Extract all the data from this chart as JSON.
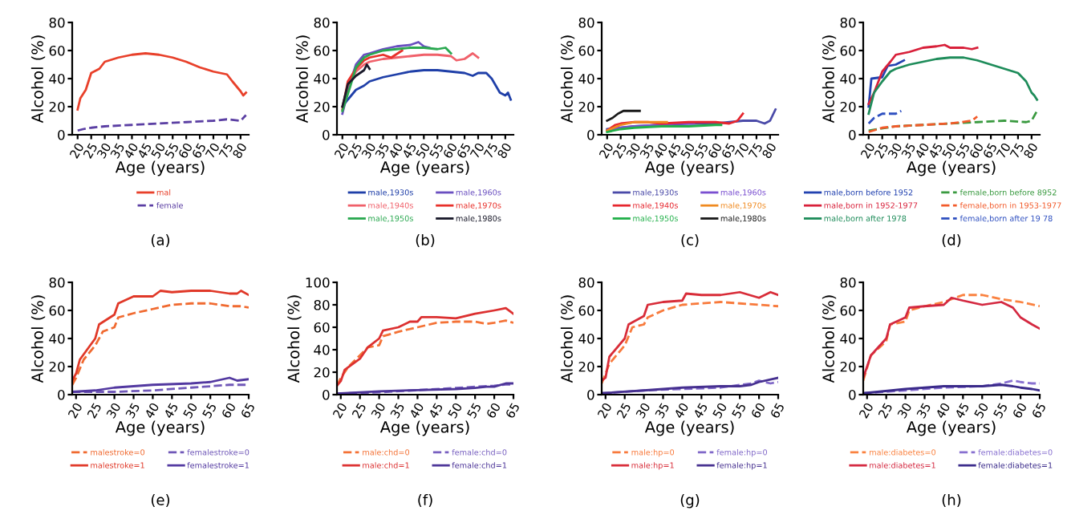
{
  "chart_data": [
    {
      "type": "line",
      "xlabel": "Age (years)",
      "ylabel": "Alcohol (%)",
      "xlim": [
        18,
        83
      ],
      "ylim": [
        0,
        80
      ],
      "xticks": [
        20,
        25,
        30,
        35,
        40,
        45,
        50,
        55,
        60,
        65,
        70,
        75,
        80
      ],
      "yticks": [
        0,
        20,
        40,
        60,
        80
      ],
      "legend": "bottom",
      "annotations": [
        "(a)"
      ],
      "series": [
        {
          "name": "mal",
          "color": "#e8402a",
          "line_style": "solid",
          "x": [
            20,
            21,
            23,
            25,
            28,
            30,
            35,
            40,
            45,
            50,
            55,
            60,
            65,
            70,
            75,
            77,
            80,
            81,
            82
          ],
          "values": [
            18,
            26,
            32,
            44,
            47,
            52,
            55,
            57,
            58,
            57,
            55,
            52,
            48,
            45,
            43,
            38,
            31,
            28,
            30
          ]
        },
        {
          "name": "female",
          "color": "#5b3fa3",
          "line_style": "dashed",
          "x": [
            20,
            22,
            25,
            30,
            40,
            50,
            60,
            70,
            75,
            80,
            82
          ],
          "values": [
            3,
            4,
            5,
            6,
            7,
            8,
            9,
            10,
            11,
            10,
            14
          ]
        }
      ]
    },
    {
      "type": "line",
      "xlabel": "Age (years)",
      "ylabel": "Alcohol (%)",
      "xlim": [
        18,
        83
      ],
      "ylim": [
        0,
        80
      ],
      "xticks": [
        20,
        25,
        30,
        35,
        40,
        45,
        50,
        55,
        60,
        65,
        70,
        75,
        80
      ],
      "yticks": [
        0,
        20,
        40,
        60,
        80
      ],
      "legend": "bottom",
      "annotations": [
        "(b)"
      ],
      "series": [
        {
          "name": "male,1930s",
          "color": "#1f3fa8",
          "line_style": "solid",
          "x": [
            20,
            22,
            25,
            28,
            30,
            35,
            40,
            45,
            50,
            55,
            60,
            65,
            68,
            70,
            73,
            75,
            78,
            80,
            81,
            82
          ],
          "values": [
            20,
            25,
            32,
            35,
            38,
            41,
            43,
            45,
            46,
            46,
            45,
            44,
            42,
            44,
            44,
            40,
            30,
            28,
            30,
            25
          ]
        },
        {
          "name": "male,1960s",
          "color": "#6a4fc0",
          "line_style": "solid",
          "x": [
            20,
            23,
            25,
            28,
            30,
            35,
            40,
            45,
            48,
            50,
            52
          ],
          "values": [
            15,
            38,
            50,
            57,
            58,
            61,
            63,
            64,
            66,
            63,
            62
          ]
        },
        {
          "name": "male,1940s",
          "color": "#f0606a",
          "line_style": "solid",
          "x": [
            20,
            22,
            25,
            28,
            30,
            35,
            40,
            45,
            50,
            55,
            60,
            62,
            65,
            68,
            70
          ],
          "values": [
            20,
            35,
            45,
            50,
            52,
            54,
            55,
            56,
            57,
            57,
            56,
            53,
            54,
            58,
            55
          ]
        },
        {
          "name": "male,1970s",
          "color": "#e8302a",
          "line_style": "solid",
          "x": [
            20,
            22,
            25,
            28,
            30,
            35,
            38,
            42
          ],
          "values": [
            18,
            38,
            47,
            53,
            55,
            57,
            55,
            60
          ]
        },
        {
          "name": "male,1950s",
          "color": "#2aa850",
          "line_style": "solid",
          "x": [
            20,
            23,
            25,
            28,
            30,
            35,
            40,
            45,
            50,
            55,
            58,
            60
          ],
          "values": [
            17,
            35,
            48,
            55,
            57,
            60,
            61,
            62,
            62,
            61,
            62,
            58
          ]
        },
        {
          "name": "male,1980s",
          "color": "#1a1a2a",
          "line_style": "solid",
          "x": [
            20,
            22,
            25,
            28,
            29,
            30
          ],
          "values": [
            20,
            36,
            42,
            46,
            50,
            47
          ]
        }
      ]
    },
    {
      "type": "line",
      "xlabel": "Age (years)",
      "ylabel": "Alcohol (%)",
      "xlim": [
        18,
        83
      ],
      "ylim": [
        0,
        80
      ],
      "xticks": [
        20,
        25,
        30,
        35,
        40,
        45,
        50,
        55,
        60,
        65,
        70,
        75,
        80
      ],
      "yticks": [
        0,
        20,
        40,
        60,
        80
      ],
      "legend": "bottom",
      "annotations": [
        "(c)"
      ],
      "series": [
        {
          "name": "male,1930s",
          "color": "#4a4aa8",
          "line_style": "solid",
          "x": [
            20,
            30,
            40,
            50,
            60,
            65,
            70,
            75,
            78,
            80,
            82
          ],
          "values": [
            4,
            6,
            7,
            8,
            8,
            9,
            10,
            10,
            8,
            10,
            18
          ]
        },
        {
          "name": "male,1960s",
          "color": "#7a4fd0",
          "line_style": "solid",
          "x": [
            20,
            25,
            30,
            40,
            45,
            52
          ],
          "values": [
            3,
            5,
            6,
            7,
            8,
            8
          ]
        },
        {
          "name": "male,1940s",
          "color": "#e6262e",
          "line_style": "solid",
          "x": [
            20,
            23,
            25,
            30,
            35,
            40,
            50,
            60,
            65,
            68,
            70
          ],
          "values": [
            3,
            7,
            8,
            9,
            9,
            8,
            9,
            9,
            8,
            10,
            15
          ]
        },
        {
          "name": "male,1970s",
          "color": "#f08a20",
          "line_style": "solid",
          "x": [
            20,
            25,
            30,
            35,
            40,
            42
          ],
          "values": [
            3,
            7,
            9,
            9,
            9,
            9
          ]
        },
        {
          "name": "male,1950s",
          "color": "#22b04a",
          "line_style": "solid",
          "x": [
            20,
            25,
            30,
            40,
            50,
            60,
            62
          ],
          "values": [
            2,
            4,
            5,
            6,
            6,
            7,
            7
          ]
        },
        {
          "name": "male,1980s",
          "color": "#1a1a1a",
          "line_style": "solid",
          "x": [
            20,
            22,
            24,
            26,
            28,
            30,
            32
          ],
          "values": [
            10,
            12,
            15,
            17,
            17,
            17,
            17
          ]
        }
      ]
    },
    {
      "type": "line",
      "xlabel": "Age (years)",
      "ylabel": "Alcohol (%)",
      "xlim": [
        18,
        83
      ],
      "ylim": [
        0,
        80
      ],
      "xticks": [
        20,
        25,
        30,
        35,
        40,
        45,
        50,
        55,
        60,
        65,
        70,
        75,
        80
      ],
      "yticks": [
        0,
        20,
        40,
        60,
        80
      ],
      "legend": "bottom",
      "annotations": [
        "(d)"
      ],
      "series": [
        {
          "name": "male,born before 1952",
          "color": "#2242b0",
          "line_style": "solid",
          "x": [
            20,
            21,
            25,
            27,
            30,
            33
          ],
          "values": [
            20,
            40,
            41,
            49,
            50,
            53
          ]
        },
        {
          "name": "female,born before 8952",
          "color": "#3a9a40",
          "line_style": "dashed",
          "x": [
            20,
            30,
            40,
            50,
            60,
            70,
            78,
            80,
            82
          ],
          "values": [
            3,
            6,
            7,
            8,
            9,
            10,
            9,
            10,
            17
          ]
        },
        {
          "name": "male,born in 1952-1977",
          "color": "#d8203a",
          "line_style": "solid",
          "x": [
            20,
            22,
            25,
            28,
            30,
            35,
            40,
            45,
            48,
            50,
            55,
            58,
            60
          ],
          "values": [
            22,
            30,
            45,
            52,
            57,
            59,
            62,
            63,
            64,
            62,
            62,
            61,
            62
          ]
        },
        {
          "name": "female,born in 1953-1977",
          "color": "#f25a2a",
          "line_style": "dashed",
          "x": [
            20,
            25,
            30,
            40,
            50,
            58,
            60
          ],
          "values": [
            2,
            5,
            6,
            7,
            8,
            10,
            13
          ]
        },
        {
          "name": "male,born after 1978",
          "color": "#1e8c5a",
          "line_style": "solid",
          "x": [
            20,
            22,
            25,
            28,
            30,
            35,
            40,
            45,
            50,
            55,
            60,
            65,
            70,
            75,
            78,
            80,
            81,
            82
          ],
          "values": [
            15,
            30,
            38,
            45,
            47,
            50,
            52,
            54,
            55,
            55,
            53,
            50,
            47,
            44,
            38,
            30,
            28,
            25
          ]
        },
        {
          "name": "female,born after 19 78",
          "color": "#2f50c0",
          "line_style": "dashed",
          "x": [
            20,
            22,
            25,
            28,
            30,
            32
          ],
          "values": [
            8,
            12,
            15,
            15,
            15,
            17
          ]
        }
      ]
    },
    {
      "type": "line",
      "xlabel": "Age (years)",
      "ylabel": "Alcohol (%)",
      "xlim": [
        19,
        65
      ],
      "ylim": [
        0,
        80
      ],
      "xticks": [
        20,
        25,
        30,
        35,
        40,
        45,
        50,
        55,
        60,
        65
      ],
      "yticks": [
        0,
        20,
        40,
        60,
        80
      ],
      "legend": "bottom",
      "annotations": [
        "(e)"
      ],
      "series": [
        {
          "name": "malestroke=0",
          "color": "#f06a30",
          "line_style": "dashed",
          "x": [
            19,
            20,
            22,
            25,
            27,
            30,
            31,
            35,
            40,
            45,
            50,
            55,
            60,
            63,
            65
          ],
          "values": [
            7,
            12,
            25,
            35,
            45,
            48,
            55,
            58,
            61,
            64,
            65,
            65,
            63,
            63,
            62
          ]
        },
        {
          "name": "femalestroke=0",
          "color": "#7058b8",
          "line_style": "dashed",
          "x": [
            19,
            25,
            30,
            40,
            50,
            55,
            60,
            65
          ],
          "values": [
            2,
            2,
            2,
            3,
            5,
            6,
            7,
            7
          ]
        },
        {
          "name": "malestroke=1",
          "color": "#e03828",
          "line_style": "solid",
          "x": [
            19,
            20,
            21,
            25,
            26,
            30,
            31,
            35,
            40,
            42,
            45,
            50,
            55,
            60,
            62,
            63,
            65
          ],
          "values": [
            10,
            15,
            25,
            40,
            50,
            57,
            65,
            70,
            70,
            74,
            73,
            74,
            74,
            72,
            72,
            74,
            71
          ]
        },
        {
          "name": "femalestroke=1",
          "color": "#5238a0",
          "line_style": "solid",
          "x": [
            19,
            25,
            30,
            40,
            50,
            55,
            60,
            62,
            65
          ],
          "values": [
            2,
            3,
            5,
            7,
            8,
            9,
            12,
            10,
            11
          ]
        }
      ]
    },
    {
      "type": "line",
      "xlabel": "Age (years)",
      "ylabel": "Alcohol (%)",
      "xlim": [
        19,
        65
      ],
      "ylim": [
        0,
        100
      ],
      "xticks": [
        20,
        25,
        30,
        35,
        40,
        45,
        50,
        55,
        60,
        65
      ],
      "yticks": [
        0,
        20,
        40,
        60,
        80,
        100
      ],
      "legend": "bottom",
      "annotations": [
        "(f)"
      ],
      "series": [
        {
          "name": "male:chd=0",
          "color": "#f47236",
          "line_style": "dashed",
          "x": [
            19,
            20,
            22,
            25,
            27,
            30,
            31,
            35,
            40,
            45,
            50,
            55,
            58,
            60,
            63,
            65
          ],
          "values": [
            8,
            15,
            25,
            35,
            42,
            44,
            52,
            56,
            60,
            64,
            65,
            65,
            63,
            64,
            66,
            64
          ]
        },
        {
          "name": "female:chd=0",
          "color": "#7860c0",
          "line_style": "dashed",
          "x": [
            19,
            30,
            40,
            50,
            55,
            60,
            63,
            65
          ],
          "values": [
            1,
            2,
            4,
            6,
            7,
            8,
            9,
            9
          ]
        },
        {
          "name": "male:chd=1",
          "color": "#dc3030",
          "line_style": "solid",
          "x": [
            19,
            20,
            21,
            25,
            27,
            30,
            31,
            35,
            38,
            40,
            41,
            45,
            50,
            55,
            60,
            63,
            65
          ],
          "values": [
            8,
            12,
            22,
            32,
            42,
            50,
            57,
            60,
            65,
            65,
            69,
            69,
            68,
            72,
            75,
            77,
            72
          ]
        },
        {
          "name": "female:chd=1",
          "color": "#4c3498",
          "line_style": "solid",
          "x": [
            19,
            30,
            40,
            50,
            55,
            58,
            60,
            63,
            65
          ],
          "values": [
            1,
            3,
            4,
            5,
            6,
            7,
            7,
            10,
            10
          ]
        }
      ]
    },
    {
      "type": "line",
      "xlabel": "Age (years)",
      "ylabel": "Alcohol (%)",
      "xlim": [
        19,
        65
      ],
      "ylim": [
        0,
        80
      ],
      "xticks": [
        20,
        25,
        30,
        35,
        40,
        45,
        50,
        55,
        60,
        65
      ],
      "yticks": [
        0,
        20,
        40,
        60,
        80
      ],
      "legend": "bottom",
      "annotations": [
        "(g)"
      ],
      "series": [
        {
          "name": "male:hp=0",
          "color": "#f87a3c",
          "line_style": "dashed",
          "x": [
            19,
            21,
            25,
            27,
            30,
            31,
            35,
            40,
            45,
            50,
            55,
            60,
            65
          ],
          "values": [
            8,
            22,
            35,
            48,
            50,
            55,
            60,
            64,
            65,
            66,
            65,
            64,
            63
          ]
        },
        {
          "name": "female:hp=0",
          "color": "#8068c8",
          "line_style": "dashed",
          "x": [
            19,
            30,
            40,
            50,
            55,
            58,
            60,
            63,
            65
          ],
          "values": [
            1,
            3,
            4,
            5,
            7,
            8,
            10,
            8,
            9
          ]
        },
        {
          "name": "male:hp=1",
          "color": "#d82c38",
          "line_style": "solid",
          "x": [
            19,
            20,
            21,
            25,
            26,
            30,
            31,
            35,
            40,
            41,
            45,
            50,
            55,
            60,
            63,
            65
          ],
          "values": [
            10,
            12,
            27,
            40,
            50,
            56,
            64,
            66,
            67,
            72,
            71,
            71,
            73,
            69,
            73,
            71
          ]
        },
        {
          "name": "female:hp=1",
          "color": "#463090",
          "line_style": "solid",
          "x": [
            19,
            30,
            40,
            50,
            55,
            58,
            60,
            65
          ],
          "values": [
            1,
            3,
            5,
            6,
            6,
            7,
            9,
            12
          ]
        }
      ]
    },
    {
      "type": "line",
      "xlabel": "Age (years)",
      "ylabel": "Alcohol (%)",
      "xlim": [
        19,
        65
      ],
      "ylim": [
        0,
        80
      ],
      "xticks": [
        20,
        25,
        30,
        35,
        40,
        45,
        50,
        55,
        60,
        65
      ],
      "yticks": [
        0,
        20,
        40,
        60,
        80
      ],
      "legend": "bottom",
      "annotations": [
        "(h)"
      ],
      "series": [
        {
          "name": "male:diabetes=0",
          "color": "#fa8240",
          "line_style": "dashed",
          "x": [
            19,
            21,
            25,
            26,
            30,
            31,
            35,
            40,
            45,
            50,
            55,
            60,
            65
          ],
          "values": [
            10,
            28,
            38,
            50,
            52,
            60,
            63,
            66,
            71,
            71,
            68,
            66,
            63
          ]
        },
        {
          "name": "female:diabetes=0",
          "color": "#8870d0",
          "line_style": "dashed",
          "x": [
            19,
            30,
            40,
            50,
            55,
            58,
            60,
            63,
            65
          ],
          "values": [
            1,
            3,
            5,
            6,
            8,
            10,
            9,
            8,
            8
          ]
        },
        {
          "name": "male:diabetes=1",
          "color": "#d42840",
          "line_style": "solid",
          "x": [
            19,
            21,
            25,
            26,
            30,
            31,
            35,
            40,
            42,
            45,
            50,
            55,
            58,
            60,
            63,
            65
          ],
          "values": [
            12,
            28,
            40,
            50,
            55,
            62,
            63,
            64,
            69,
            67,
            64,
            66,
            62,
            55,
            50,
            47
          ]
        },
        {
          "name": "female:diabetes=1",
          "color": "#3a2a8a",
          "line_style": "solid",
          "x": [
            19,
            30,
            40,
            45,
            50,
            55,
            58,
            60,
            63,
            65
          ],
          "values": [
            1,
            4,
            6,
            6,
            6,
            7,
            6,
            5,
            4,
            3
          ]
        }
      ]
    }
  ]
}
